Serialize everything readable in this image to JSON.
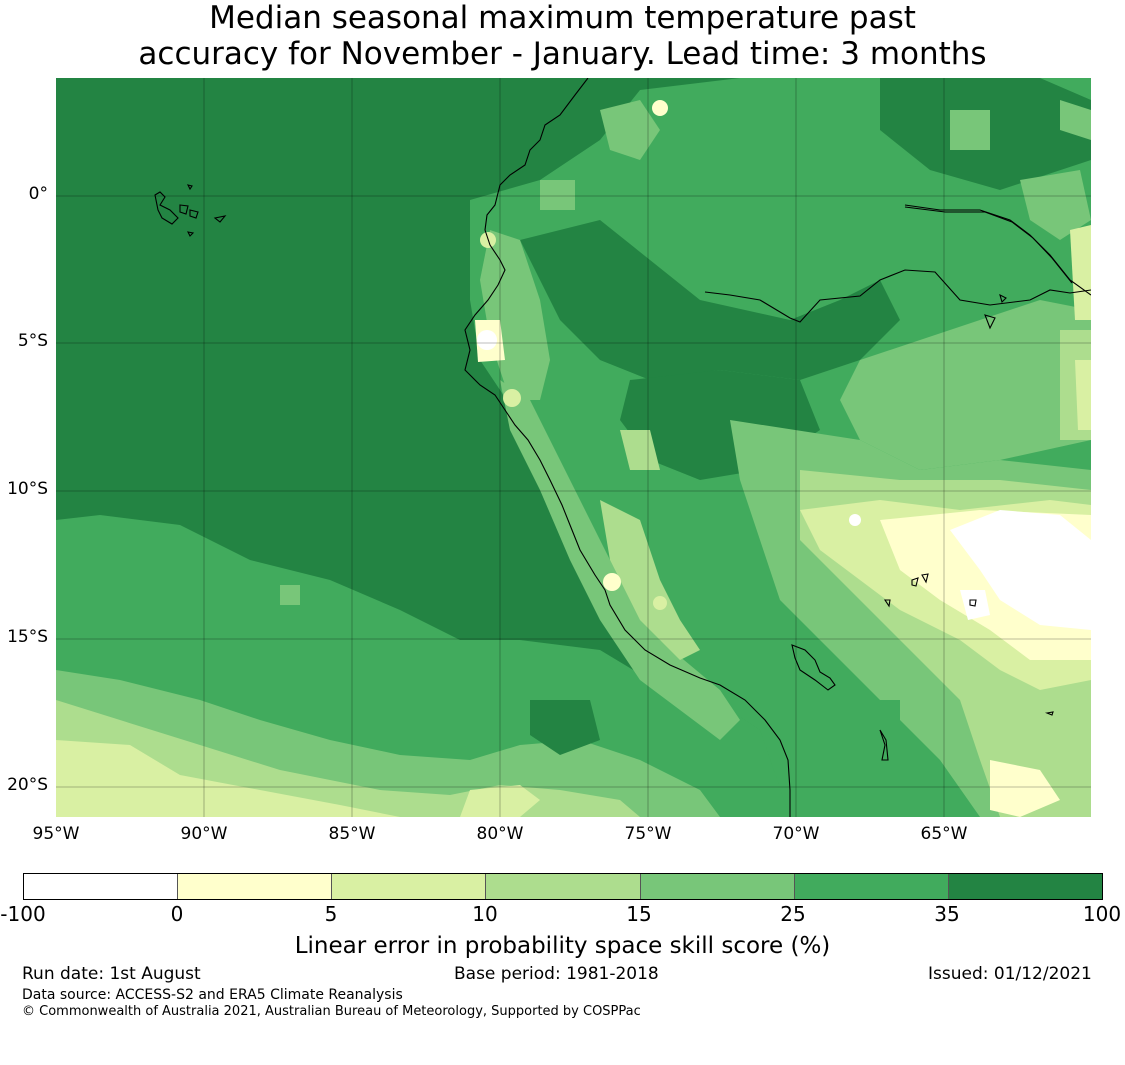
{
  "title": {
    "line1": "Median seasonal maximum temperature past",
    "line2": "accuracy for November - January. Lead time: 3 months"
  },
  "map": {
    "lat_labels": [
      "0°",
      "5°S",
      "10°S",
      "15°S",
      "20°S"
    ],
    "lon_labels": [
      "95°W",
      "90°W",
      "85°W",
      "80°W",
      "75°W",
      "70°W",
      "65°W"
    ],
    "lat_range": [
      -21,
      4
    ],
    "lon_range": [
      -95,
      -60
    ]
  },
  "colorbar": {
    "ticks": [
      "-100",
      "0",
      "5",
      "10",
      "15",
      "25",
      "35",
      "100"
    ],
    "colors": [
      "#ffffff",
      "#ffffcc",
      "#d9f0a3",
      "#addd8e",
      "#78c679",
      "#41ab5d",
      "#238443"
    ],
    "label": "Linear error in probability space skill score (%)"
  },
  "footer": {
    "run_date": "Run date: 1st August",
    "base_period": "Base period: 1981-2018",
    "issued": "Issued: 01/12/2021",
    "data_source": "Data source: ACCESS-S2 and ERA5 Climate Reanalysis",
    "copyright": "© Commonwealth of Australia 2021, Australian Bureau of Meteorology, Supported by COSPPac"
  }
}
